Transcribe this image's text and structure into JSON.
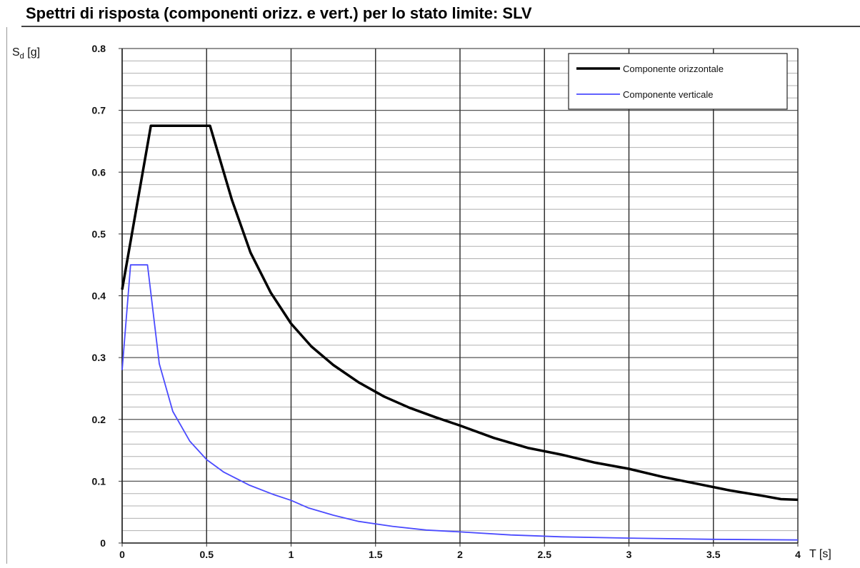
{
  "title": "Spettri di risposta (componenti orizz. e vert.) per lo stato limite:  SLV",
  "chart_data": {
    "type": "line",
    "title": "Spettri di risposta (componenti orizz. e vert.) per lo stato limite:  SLV",
    "ylabel_main": "S",
    "ylabel_sub": "d",
    "ylabel_unit": "[g]",
    "xlabel": "T  [s]",
    "xlim": [
      0,
      4
    ],
    "ylim": [
      0,
      0.8
    ],
    "grid": true,
    "legend_position": "top-right",
    "x_ticks": [
      "0",
      "0.5",
      "1",
      "1.5",
      "2",
      "2.5",
      "3",
      "3.5",
      "4"
    ],
    "y_ticks": [
      "0",
      "0.1",
      "0.2",
      "0.3",
      "0.4",
      "0.5",
      "0.6",
      "0.7",
      "0.8"
    ],
    "series": [
      {
        "name": "Componente orizzontale",
        "color": "#000000",
        "x": [
          0,
          0.17,
          0.52,
          0.65,
          0.76,
          0.88,
          1.0,
          1.12,
          1.25,
          1.4,
          1.55,
          1.7,
          1.85,
          2.0,
          2.2,
          2.4,
          2.6,
          2.8,
          3.0,
          3.2,
          3.4,
          3.6,
          3.8,
          3.9,
          4.0
        ],
        "y": [
          0.41,
          0.675,
          0.675,
          0.555,
          0.47,
          0.405,
          0.355,
          0.318,
          0.288,
          0.26,
          0.237,
          0.219,
          0.204,
          0.19,
          0.17,
          0.154,
          0.143,
          0.13,
          0.12,
          0.107,
          0.096,
          0.085,
          0.076,
          0.071,
          0.07
        ]
      },
      {
        "name": "Componente verticale",
        "color": "#4b4bff",
        "x": [
          0,
          0.05,
          0.15,
          0.22,
          0.3,
          0.4,
          0.5,
          0.6,
          0.75,
          0.9,
          1.0,
          1.1,
          1.25,
          1.4,
          1.6,
          1.8,
          2.0,
          2.3,
          2.6,
          3.0,
          3.5,
          4.0
        ],
        "y": [
          0.28,
          0.45,
          0.45,
          0.29,
          0.213,
          0.165,
          0.135,
          0.115,
          0.094,
          0.078,
          0.069,
          0.057,
          0.045,
          0.035,
          0.027,
          0.021,
          0.018,
          0.013,
          0.01,
          0.008,
          0.006,
          0.005
        ]
      }
    ]
  }
}
